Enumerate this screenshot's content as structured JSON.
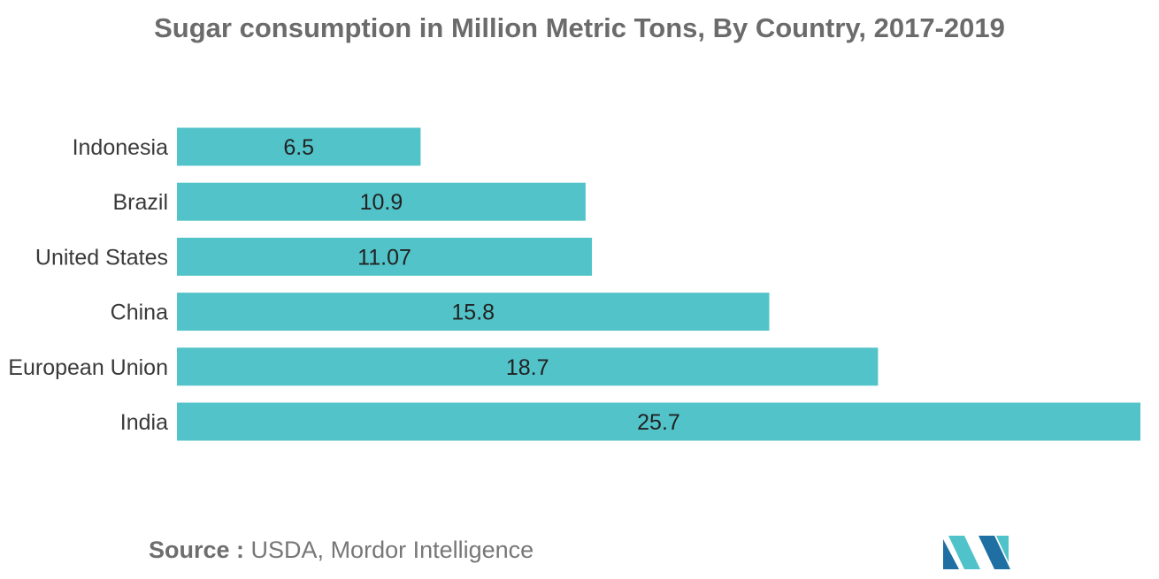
{
  "title": "Sugar consumption in Million Metric Tons, By Country, 2017-2019",
  "source": {
    "label": "Source :",
    "text": "USDA, Mordor Intelligence"
  },
  "colors": {
    "bar": "#52c3c9",
    "logo_dark": "#1f6fa3",
    "logo_light": "#4fc3c9"
  },
  "chart_data": {
    "type": "bar",
    "orientation": "horizontal",
    "title": "Sugar consumption in Million Metric Tons, By Country, 2017-2019",
    "xlabel": "",
    "ylabel": "",
    "grid": false,
    "categories": [
      "Indonesia",
      "Brazil",
      "United States",
      "China",
      "European Union",
      "India"
    ],
    "values": [
      6.5,
      10.9,
      11.07,
      15.8,
      18.7,
      25.7
    ],
    "value_labels": [
      "6.5",
      "10.9",
      "11.07",
      "15.8",
      "18.7",
      "25.7"
    ],
    "xlim": [
      0,
      25.7
    ]
  }
}
